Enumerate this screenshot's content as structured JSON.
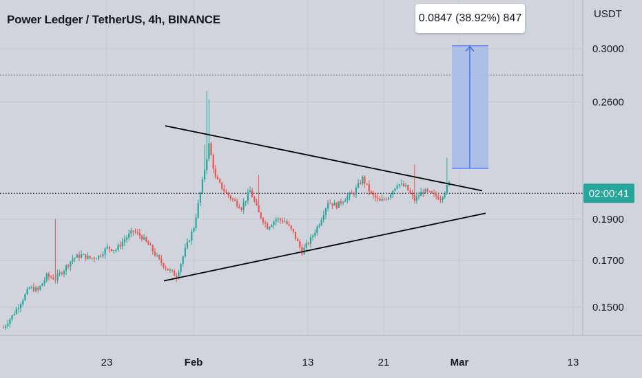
{
  "header": {
    "title": "Power Ledger / TetherUS, 4h, BINANCE"
  },
  "measure": {
    "label": "0.0847 (38.92%) 847"
  },
  "countdown": {
    "label": "02:00:41"
  },
  "colors": {
    "background": "#d1d4dc",
    "up": "#26a69a",
    "down": "#ef5350",
    "measure_fill": "#a9bde8",
    "measure_line": "#2962ff",
    "badge": "#26a69a",
    "trendline": "#000000"
  },
  "chart_data": {
    "type": "candlestick",
    "title": "Power Ledger / TetherUS, 4h, BINANCE",
    "y_unit": "USDT",
    "y_scale": "log",
    "y_ticks": [
      "0.3000",
      "0.2600",
      "0.1900",
      "0.1700",
      "0.1500"
    ],
    "ylim": [
      0.138,
      0.335
    ],
    "x_ticks": [
      "23",
      "Feb",
      "13",
      "21",
      "Mar",
      "13"
    ],
    "grid": true,
    "current_price": 0.2036,
    "dotted_level": 0.2795,
    "measurement": {
      "from": 0.2177,
      "to": 0.3024,
      "change": "0.0847",
      "percent": "38.92%",
      "bars": "847"
    },
    "trendlines": [
      {
        "name": "upper",
        "points": [
          [
            0,
            0.244
          ],
          [
            1,
            0.205
          ]
        ]
      },
      {
        "name": "lower",
        "points": [
          [
            0,
            0.161
          ],
          [
            1,
            0.193
          ]
        ]
      }
    ],
    "price_path": [
      [
        0,
        0.142
      ],
      [
        4,
        0.1465
      ],
      [
        8,
        0.152
      ],
      [
        12,
        0.158
      ],
      [
        16,
        0.157
      ],
      [
        20,
        0.163
      ],
      [
        24,
        0.162
      ],
      [
        28,
        0.166
      ],
      [
        32,
        0.171
      ],
      [
        36,
        0.1725
      ],
      [
        40,
        0.171
      ],
      [
        44,
        0.172
      ],
      [
        48,
        0.176
      ],
      [
        52,
        0.175
      ],
      [
        56,
        0.18
      ],
      [
        60,
        0.184
      ],
      [
        64,
        0.181
      ],
      [
        68,
        0.176
      ],
      [
        72,
        0.17
      ],
      [
        76,
        0.166
      ],
      [
        80,
        0.163
      ],
      [
        84,
        0.175
      ],
      [
        88,
        0.186
      ],
      [
        92,
        0.21
      ],
      [
        95,
        0.232
      ],
      [
        98,
        0.212
      ],
      [
        102,
        0.205
      ],
      [
        106,
        0.2
      ],
      [
        110,
        0.196
      ],
      [
        114,
        0.205
      ],
      [
        118,
        0.193
      ],
      [
        122,
        0.186
      ],
      [
        126,
        0.19
      ],
      [
        130,
        0.189
      ],
      [
        134,
        0.183
      ],
      [
        138,
        0.174
      ],
      [
        142,
        0.18
      ],
      [
        146,
        0.188
      ],
      [
        150,
        0.199
      ],
      [
        154,
        0.197
      ],
      [
        158,
        0.201
      ],
      [
        162,
        0.204
      ],
      [
        166,
        0.212
      ],
      [
        170,
        0.203
      ],
      [
        174,
        0.199
      ],
      [
        178,
        0.202
      ],
      [
        182,
        0.209
      ],
      [
        186,
        0.207
      ],
      [
        190,
        0.2
      ],
      [
        194,
        0.205
      ],
      [
        198,
        0.203
      ],
      [
        202,
        0.201
      ],
      [
        206,
        0.209
      ]
    ]
  }
}
